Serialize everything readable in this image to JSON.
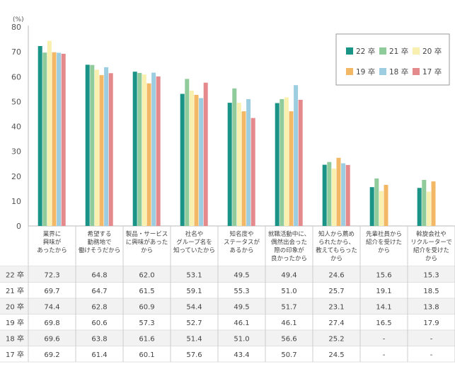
{
  "chart_data": {
    "type": "bar",
    "unit": "(%)",
    "ylim": [
      0,
      80
    ],
    "yticks": [
      0,
      10,
      20,
      30,
      40,
      50,
      60,
      70,
      80
    ],
    "categories": [
      [
        "業界に",
        "興味が",
        "あったから"
      ],
      [
        "希望する",
        "勤務地で",
        "働けそうだから"
      ],
      [
        "製品・サービス",
        "に興味があった",
        "から"
      ],
      [
        "社名や",
        "グループ名を",
        "知っていたから"
      ],
      [
        "知名度や",
        "ステータスが",
        "あるから"
      ],
      [
        "就職活動中に、",
        "偶然出会った",
        "際の印象が",
        "良かったから"
      ],
      [
        "知人から薦め",
        "られたから、",
        "教えてもらった",
        "から"
      ],
      [
        "先輩社員から",
        "紹介を受けた",
        "から"
      ],
      [
        "斡旋会社や",
        "リクルーターで",
        "紹介を受けた",
        "から"
      ]
    ],
    "series": [
      {
        "name": "22 卒",
        "color": "#1a9486",
        "values": [
          72.3,
          64.8,
          62.0,
          53.1,
          49.5,
          49.4,
          24.6,
          15.6,
          15.3
        ],
        "labels": [
          "72.3",
          "64.8",
          "62.0",
          "53.1",
          "49.5",
          "49.4",
          "24.6",
          "15.6",
          "15.3"
        ]
      },
      {
        "name": "21 卒",
        "color": "#8fcb9b",
        "values": [
          69.7,
          64.7,
          61.5,
          59.1,
          55.3,
          51.0,
          25.7,
          19.1,
          18.5
        ],
        "labels": [
          "69.7",
          "64.7",
          "61.5",
          "59.1",
          "55.3",
          "51.0",
          "25.7",
          "19.1",
          "18.5"
        ]
      },
      {
        "name": "20 卒",
        "color": "#f9f0b0",
        "values": [
          74.4,
          62.8,
          60.9,
          54.4,
          49.5,
          51.7,
          23.1,
          14.1,
          13.8
        ],
        "labels": [
          "74.4",
          "62.8",
          "60.9",
          "54.4",
          "49.5",
          "51.7",
          "23.1",
          "14.1",
          "13.8"
        ]
      },
      {
        "name": "19 卒",
        "color": "#f3b865",
        "values": [
          69.8,
          60.6,
          57.3,
          52.7,
          46.1,
          46.1,
          27.4,
          16.5,
          17.9
        ],
        "labels": [
          "69.8",
          "60.6",
          "57.3",
          "52.7",
          "46.1",
          "46.1",
          "27.4",
          "16.5",
          "17.9"
        ]
      },
      {
        "name": "18 卒",
        "color": "#9ccde0",
        "values": [
          69.6,
          63.8,
          61.6,
          51.4,
          51.0,
          56.6,
          25.2,
          null,
          null
        ],
        "labels": [
          "69.6",
          "63.8",
          "61.6",
          "51.4",
          "51.0",
          "56.6",
          "25.2",
          "-",
          "-"
        ]
      },
      {
        "name": "17 卒",
        "color": "#e58a8c",
        "values": [
          69.2,
          61.4,
          60.1,
          57.6,
          43.4,
          50.7,
          24.5,
          null,
          null
        ],
        "labels": [
          "69.2",
          "61.4",
          "60.1",
          "57.6",
          "43.4",
          "50.7",
          "24.5",
          "-",
          "-"
        ]
      }
    ]
  }
}
